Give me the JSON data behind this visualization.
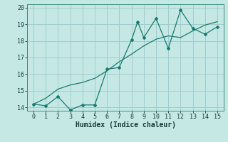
{
  "xlabel": "Humidex (Indice chaleur)",
  "xlim": [
    -0.5,
    15.5
  ],
  "ylim": [
    13.8,
    20.2
  ],
  "xticks": [
    0,
    1,
    2,
    3,
    4,
    5,
    6,
    7,
    8,
    9,
    10,
    11,
    12,
    13,
    14,
    15
  ],
  "yticks": [
    14,
    15,
    16,
    17,
    18,
    19,
    20
  ],
  "background_color": "#c5e8e5",
  "grid_color": "#9ecece",
  "line_color": "#1a7a6e",
  "line1_x": [
    0,
    1,
    2,
    3,
    4,
    5,
    6,
    7,
    8,
    8.5,
    9,
    10,
    11,
    12,
    13,
    14,
    15
  ],
  "line1_y": [
    14.2,
    14.1,
    14.65,
    13.85,
    14.15,
    14.15,
    16.3,
    16.4,
    18.05,
    19.15,
    18.2,
    19.35,
    17.55,
    19.85,
    18.75,
    18.4,
    18.85
  ],
  "line2_x": [
    0,
    1,
    2,
    3,
    4,
    5,
    6,
    7,
    8,
    9,
    10,
    11,
    12,
    13,
    14,
    15
  ],
  "line2_y": [
    14.2,
    14.55,
    15.1,
    15.35,
    15.5,
    15.75,
    16.2,
    16.75,
    17.2,
    17.7,
    18.1,
    18.3,
    18.2,
    18.6,
    18.95,
    19.15
  ],
  "tick_fontsize": 6,
  "xlabel_fontsize": 7
}
